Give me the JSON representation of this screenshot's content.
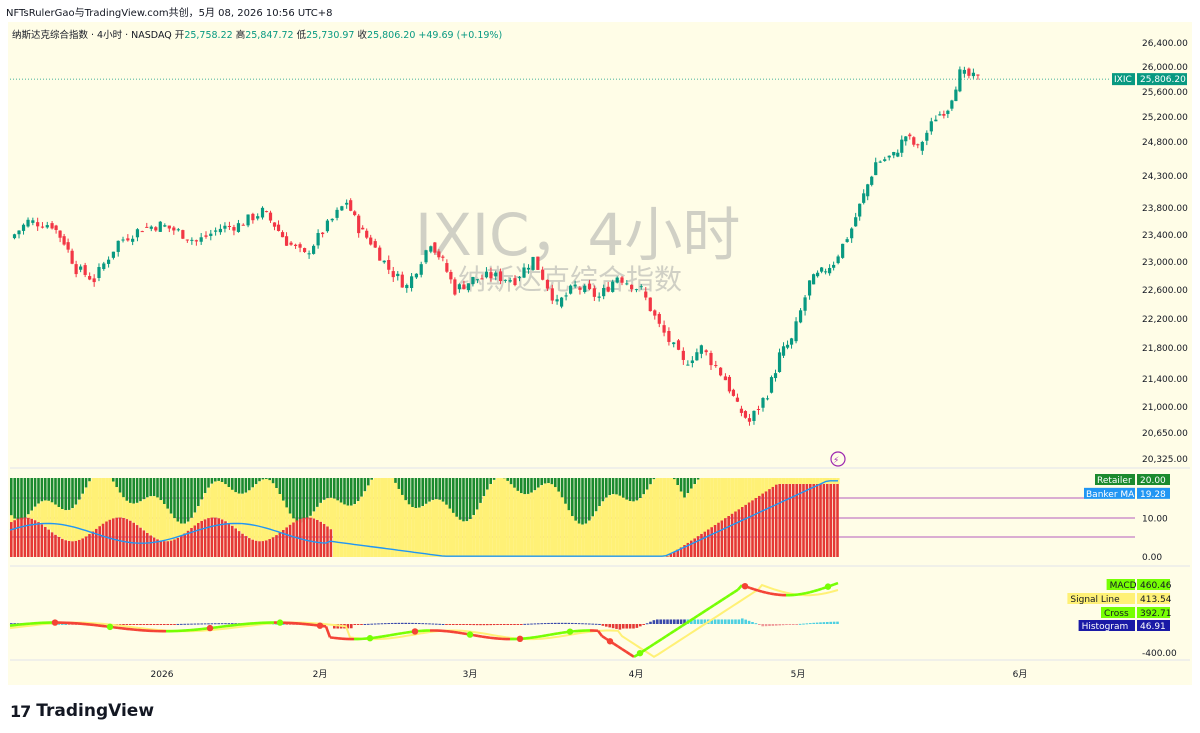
{
  "top_line": "NFTsRulerGao与TradingView.com共创，5月 08, 2026 10:56 UTC+8",
  "header": {
    "symbol": "纳斯达克综合指数 · 4小时 · NASDAQ",
    "open_label": "开",
    "open": "25,758.22",
    "high_label": "高",
    "high": "25,847.72",
    "low_label": "低",
    "low": "25,730.97",
    "close_label": "收",
    "close": "25,806.20",
    "change": "+49.69 (+0.19%)"
  },
  "watermark": {
    "title": "IXIC，4小时",
    "subtitle": "纳斯达克综合指数"
  },
  "brand": {
    "logo": "17",
    "name": "TradingView"
  },
  "colors": {
    "up": "#089981",
    "down": "#f23645",
    "bg": "#fffde7",
    "watermark": "#787b86"
  },
  "chart_data": [
    {
      "type": "candlestick",
      "title": "IXIC，4小时",
      "subtitle": "纳斯达克综合指数",
      "x_ticks": [
        "2026",
        "2月",
        "3月",
        "4月",
        "5月",
        "6月"
      ],
      "y_ticks": [
        26400,
        26000,
        25600,
        25200,
        24800,
        24300,
        23800,
        23400,
        23000,
        22600,
        22200,
        21800,
        21400,
        21000,
        20650,
        20325
      ],
      "y_tick_labels": [
        "26,400.00",
        "26,000.00",
        "25,600.00",
        "25,200.00",
        "24,800.00",
        "24,300.00",
        "23,800.00",
        "23,400.00",
        "23,000.00",
        "22,600.00",
        "22,200.00",
        "21,800.00",
        "21,400.00",
        "21,000.00",
        "20,650.00",
        "20,325.00"
      ],
      "last_price": {
        "symbol": "IXIC",
        "value": "25,806.20"
      },
      "close_path": [
        {
          "x": "2025-12-15",
          "y": 23350
        },
        {
          "x": "2025-12-18",
          "y": 23600
        },
        {
          "x": "2025-12-22",
          "y": 23550
        },
        {
          "x": "2025-12-24",
          "y": 23300
        },
        {
          "x": "2025-12-26",
          "y": 22900
        },
        {
          "x": "2025-12-29",
          "y": 22750
        },
        {
          "x": "2026-01-02",
          "y": 23300
        },
        {
          "x": "2026-01-06",
          "y": 23500
        },
        {
          "x": "2026-01-09",
          "y": 23550
        },
        {
          "x": "2026-01-12",
          "y": 23450
        },
        {
          "x": "2026-01-15",
          "y": 23300
        },
        {
          "x": "2026-01-19",
          "y": 23500
        },
        {
          "x": "2026-01-22",
          "y": 23550
        },
        {
          "x": "2026-01-26",
          "y": 23750
        },
        {
          "x": "2026-01-28",
          "y": 23550
        },
        {
          "x": "2026-01-30",
          "y": 23300
        },
        {
          "x": "2026-02-02",
          "y": 23100
        },
        {
          "x": "2026-02-05",
          "y": 23450
        },
        {
          "x": "2026-02-09",
          "y": 23900
        },
        {
          "x": "2026-02-11",
          "y": 23500
        },
        {
          "x": "2026-02-13",
          "y": 23300
        },
        {
          "x": "2026-02-16",
          "y": 22900
        },
        {
          "x": "2026-02-19",
          "y": 22650
        },
        {
          "x": "2026-02-23",
          "y": 23300
        },
        {
          "x": "2026-02-25",
          "y": 23000
        },
        {
          "x": "2026-02-27",
          "y": 22600
        },
        {
          "x": "2026-03-02",
          "y": 22750
        },
        {
          "x": "2026-03-05",
          "y": 22800
        },
        {
          "x": "2026-03-09",
          "y": 22750
        },
        {
          "x": "2026-03-12",
          "y": 23050
        },
        {
          "x": "2026-03-16",
          "y": 22400
        },
        {
          "x": "2026-03-19",
          "y": 22650
        },
        {
          "x": "2026-03-23",
          "y": 22500
        },
        {
          "x": "2026-03-26",
          "y": 22800
        },
        {
          "x": "2026-03-30",
          "y": 22600
        },
        {
          "x": "2026-04-02",
          "y": 22100
        },
        {
          "x": "2026-04-06",
          "y": 21600
        },
        {
          "x": "2026-04-09",
          "y": 21800
        },
        {
          "x": "2026-04-13",
          "y": 21400
        },
        {
          "x": "2026-04-15",
          "y": 21000
        },
        {
          "x": "2026-04-17",
          "y": 20800
        },
        {
          "x": "2026-04-20",
          "y": 21200
        },
        {
          "x": "2026-04-22",
          "y": 21700
        },
        {
          "x": "2026-04-24",
          "y": 21900
        },
        {
          "x": "2026-04-27",
          "y": 22700
        },
        {
          "x": "2026-04-29",
          "y": 22850
        },
        {
          "x": "2026-05-01",
          "y": 23000
        },
        {
          "x": "2026-05-04",
          "y": 23500
        },
        {
          "x": "2026-05-06",
          "y": 24000
        },
        {
          "x": "2026-05-08",
          "y": 24500
        },
        {
          "x": "2026-05-11",
          "y": 24600
        },
        {
          "x": "2026-05-13",
          "y": 24900
        },
        {
          "x": "2026-05-15",
          "y": 24700
        },
        {
          "x": "2026-05-18",
          "y": 25200
        },
        {
          "x": "2026-05-20",
          "y": 25350
        },
        {
          "x": "2026-05-22",
          "y": 25900
        },
        {
          "x": "2026-05-25",
          "y": 25806
        }
      ]
    },
    {
      "type": "bar",
      "series": [
        {
          "name": "Retailer",
          "last": "20.00"
        },
        {
          "name": "Banker MA",
          "last": "19.28"
        }
      ],
      "y_ticks": [
        "10.00",
        "0.00"
      ]
    },
    {
      "type": "line",
      "series": [
        {
          "name": "MACD",
          "last": "460.46"
        },
        {
          "name": "Signal Line",
          "last": "413.54"
        },
        {
          "name": "Cross",
          "last": "392.71"
        },
        {
          "name": "Histogram",
          "last": "46.91"
        }
      ],
      "y_ticks": [
        "-400.00"
      ]
    }
  ]
}
